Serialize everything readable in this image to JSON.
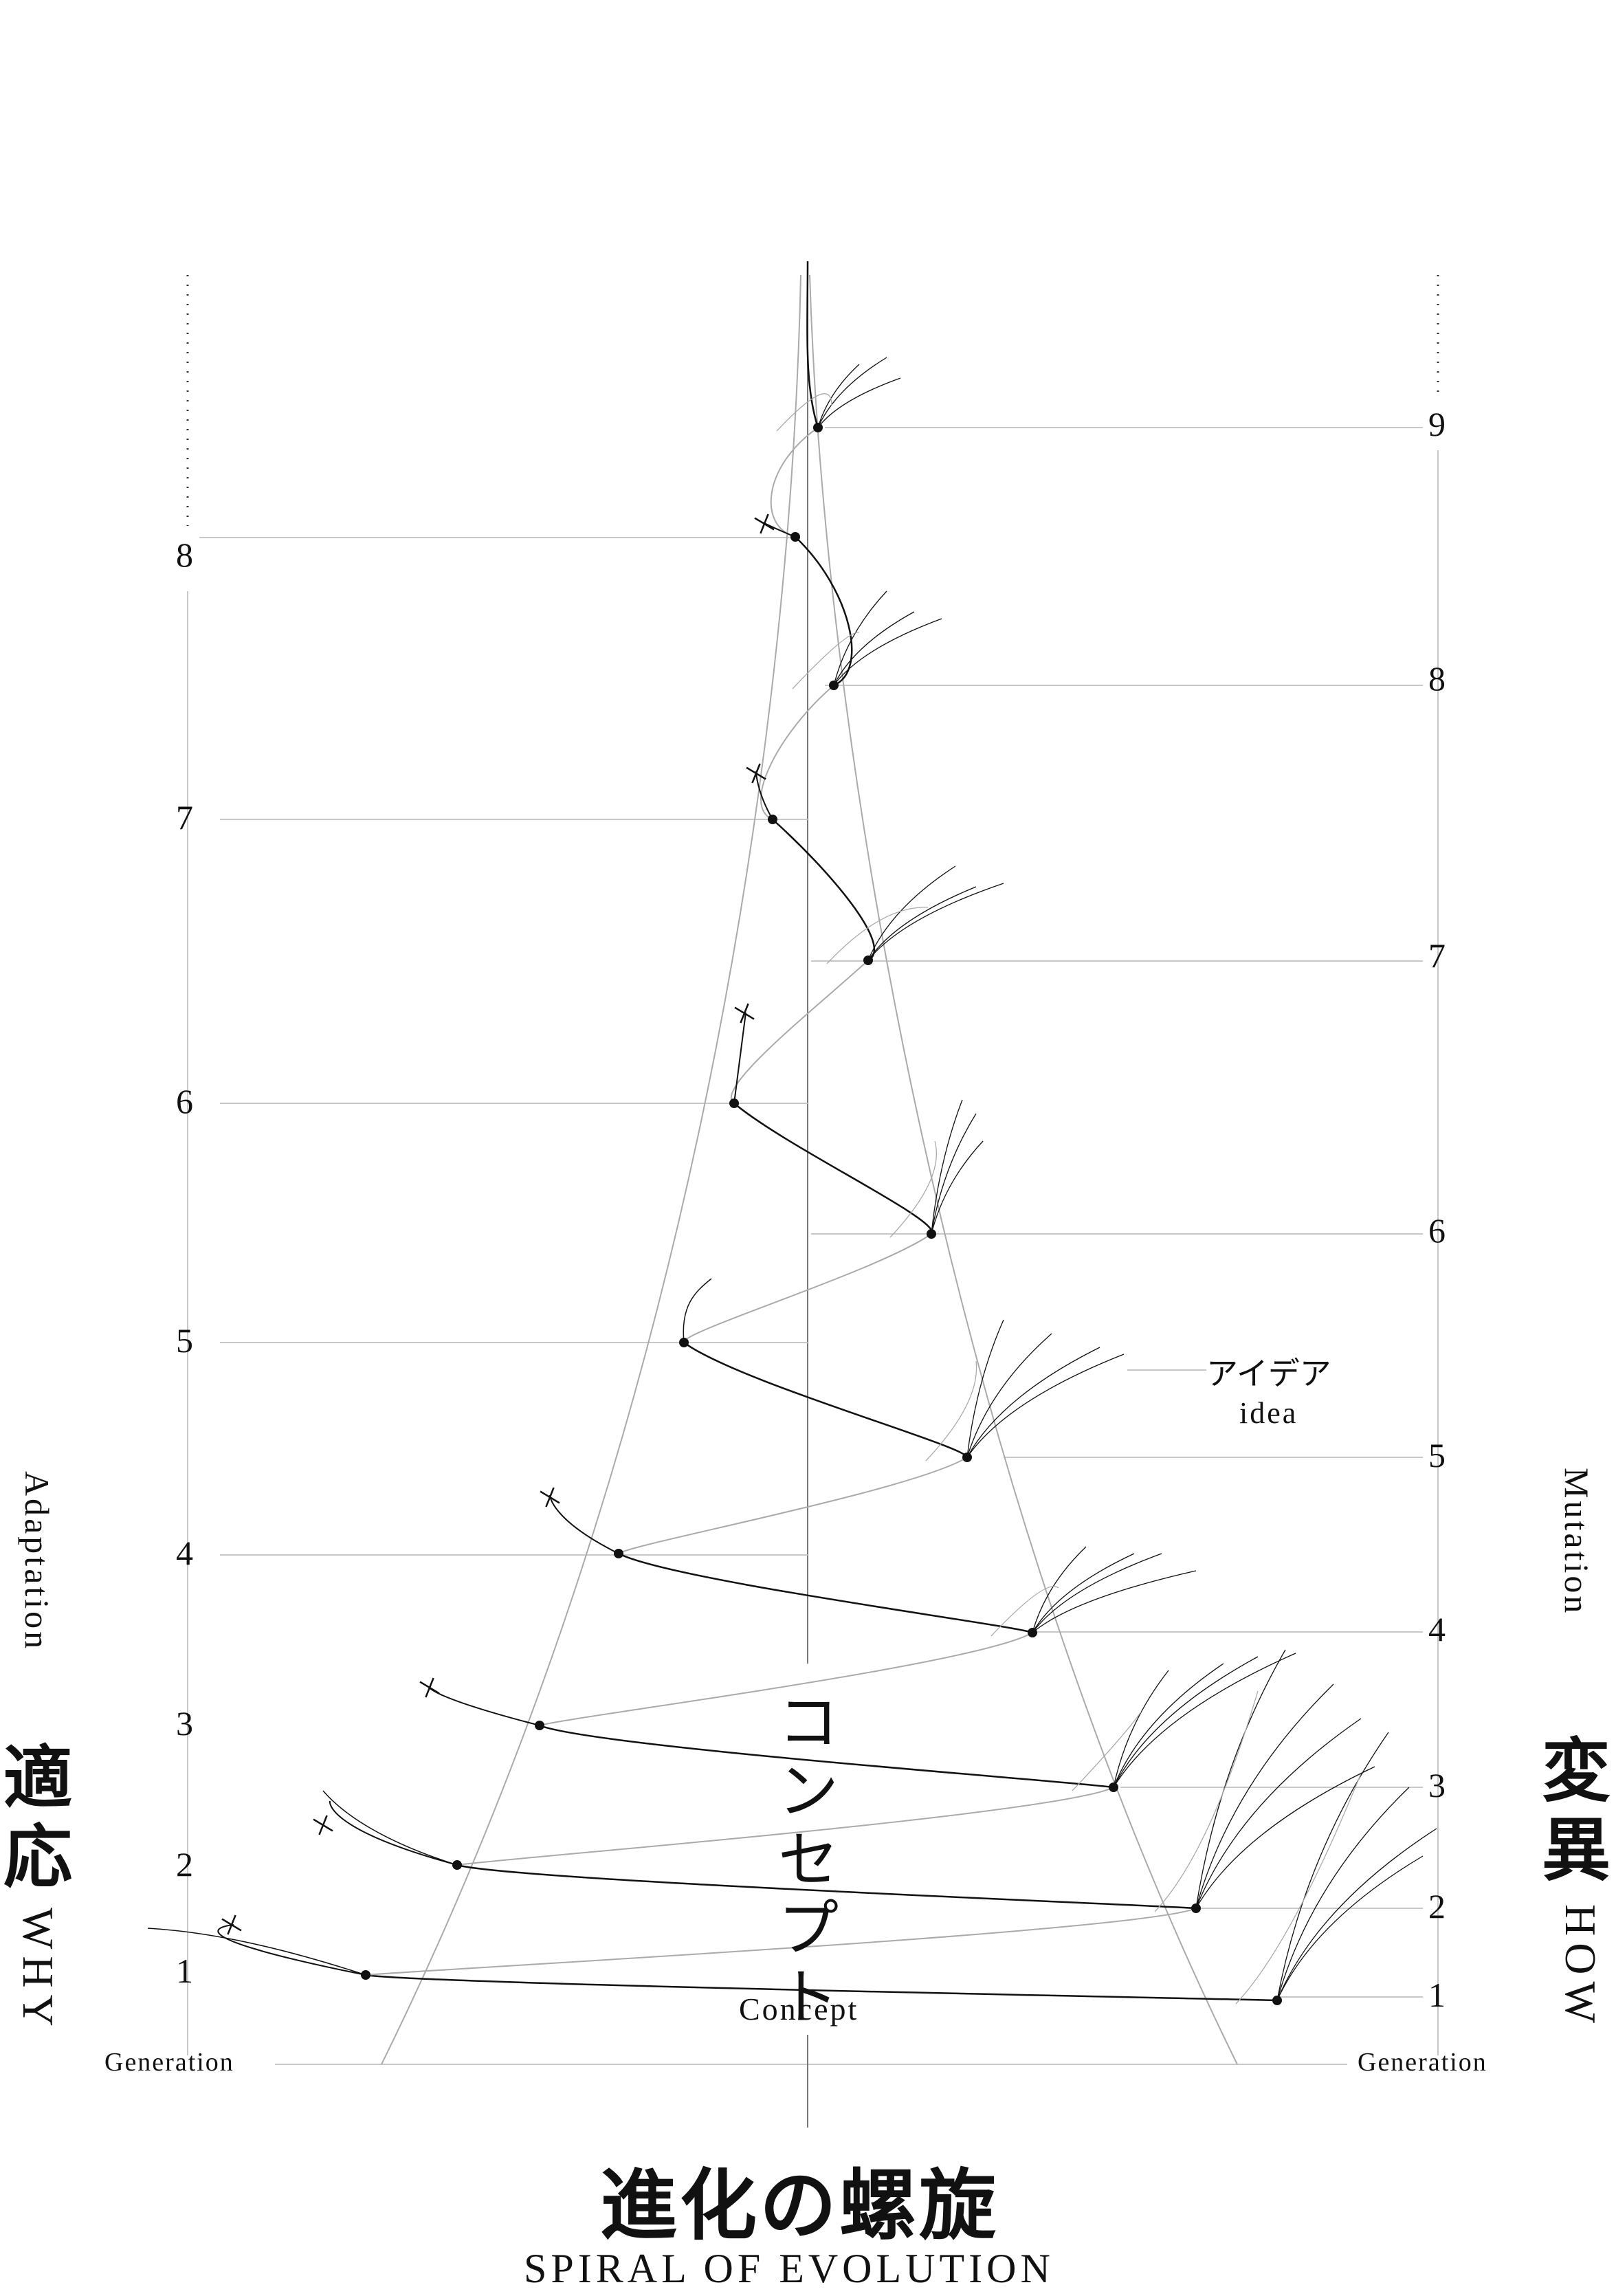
{
  "title": {
    "jp": "進化の螺旋",
    "en": "SPIRAL OF EVOLUTION"
  },
  "left": {
    "jp_chars": [
      "適",
      "応"
    ],
    "why": "WHY",
    "adaptation": "Adaptation",
    "generation": "Generation",
    "numbers": [
      "1",
      "2",
      "3",
      "4",
      "5",
      "6",
      "7",
      "8"
    ]
  },
  "right": {
    "jp_chars": [
      "変",
      "異"
    ],
    "how": "HOW",
    "mutation": "Mutation",
    "generation": "Generation",
    "numbers": [
      "1",
      "2",
      "3",
      "4",
      "5",
      "6",
      "7",
      "8",
      "9"
    ]
  },
  "center": {
    "concept_chars": [
      "コ",
      "ン",
      "セ",
      "プ",
      "ト"
    ],
    "concept_en": "Concept"
  },
  "idea": {
    "jp": "アイデア",
    "en": "idea"
  },
  "colors": {
    "ink": "#111111",
    "line": "#c8c8c8",
    "spiral_light": "#aaaaaa"
  }
}
